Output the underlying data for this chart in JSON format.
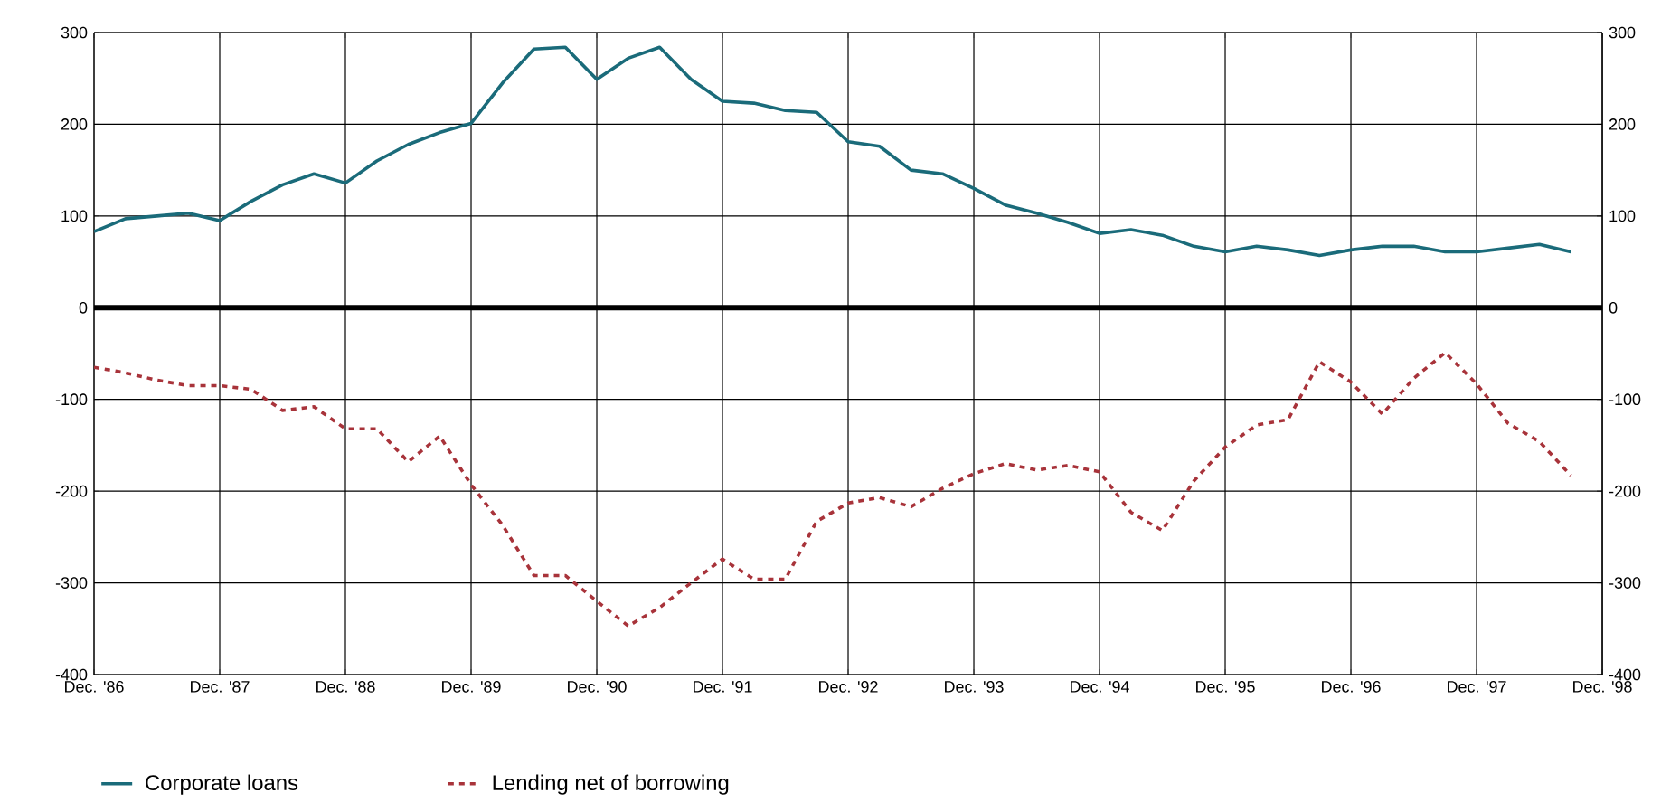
{
  "chart_data": {
    "type": "line",
    "x": [
      "1986-12",
      "1987-03",
      "1987-06",
      "1987-09",
      "1987-12",
      "1988-03",
      "1988-06",
      "1988-09",
      "1988-12",
      "1989-03",
      "1989-06",
      "1989-09",
      "1989-12",
      "1990-03",
      "1990-06",
      "1990-09",
      "1990-12",
      "1991-03",
      "1991-06",
      "1991-09",
      "1991-12",
      "1992-03",
      "1992-06",
      "1992-09",
      "1992-12",
      "1993-03",
      "1993-06",
      "1993-09",
      "1993-12",
      "1994-03",
      "1994-06",
      "1994-09",
      "1994-12",
      "1995-03",
      "1995-06",
      "1995-09",
      "1995-12",
      "1996-03",
      "1996-06",
      "1996-09",
      "1996-12",
      "1997-03",
      "1997-06",
      "1997-09",
      "1997-12",
      "1998-03",
      "1998-06",
      "1998-09"
    ],
    "series": [
      {
        "name": "Corporate loans",
        "color": "#1a6b7a",
        "line_style": "solid",
        "values": [
          83,
          97,
          100,
          103,
          95,
          116,
          134,
          146,
          136,
          160,
          178,
          191,
          201,
          245,
          282,
          284,
          249,
          272,
          284,
          249,
          225,
          223,
          215,
          213,
          181,
          176,
          150,
          146,
          130,
          112,
          103,
          93,
          81,
          85,
          79,
          67,
          61,
          67,
          63,
          57,
          63,
          67,
          67,
          61,
          61,
          65,
          69,
          61
        ]
      },
      {
        "name": "Lending net of borrowing",
        "color": "#a8333a",
        "line_style": "dashed",
        "values": [
          -65,
          -71,
          -79,
          -85,
          -85,
          -89,
          -112,
          -108,
          -132,
          -132,
          -168,
          -140,
          -193,
          -237,
          -292,
          -292,
          -320,
          -347,
          -327,
          -300,
          -274,
          -296,
          -296,
          -233,
          -213,
          -207,
          -217,
          -197,
          -181,
          -170,
          -177,
          -172,
          -179,
          -223,
          -243,
          -189,
          -152,
          -128,
          -122,
          -59,
          -81,
          -116,
          -77,
          -49,
          -83,
          -126,
          -146,
          -183
        ]
      }
    ],
    "xlim": [
      "1986-12",
      "1998-12"
    ],
    "xticks": [
      {
        "value": "1986-12",
        "label": "Dec. '86"
      },
      {
        "value": "1987-12",
        "label": "Dec. '87"
      },
      {
        "value": "1988-12",
        "label": "Dec. '88"
      },
      {
        "value": "1989-12",
        "label": "Dec. '89"
      },
      {
        "value": "1990-12",
        "label": "Dec. '90"
      },
      {
        "value": "1991-12",
        "label": "Dec. '91"
      },
      {
        "value": "1992-12",
        "label": "Dec. '92"
      },
      {
        "value": "1993-12",
        "label": "Dec. '93"
      },
      {
        "value": "1994-12",
        "label": "Dec. '94"
      },
      {
        "value": "1995-12",
        "label": "Dec. '95"
      },
      {
        "value": "1996-12",
        "label": "Dec. '96"
      },
      {
        "value": "1997-12",
        "label": "Dec. '97"
      },
      {
        "value": "1998-12",
        "label": "Dec. '98"
      }
    ],
    "ylim": [
      -400,
      300
    ],
    "yticks": [
      -400,
      -300,
      -200,
      -100,
      0,
      100,
      200,
      300
    ],
    "y2lim": [
      -400,
      300
    ],
    "y2ticks": [
      -400,
      -300,
      -200,
      -100,
      0,
      100,
      200,
      300
    ],
    "ref_lines": [
      {
        "axis": "y",
        "value": 0,
        "color": "#000000"
      }
    ],
    "grid": true,
    "legend": "bottom",
    "marker": "none"
  }
}
